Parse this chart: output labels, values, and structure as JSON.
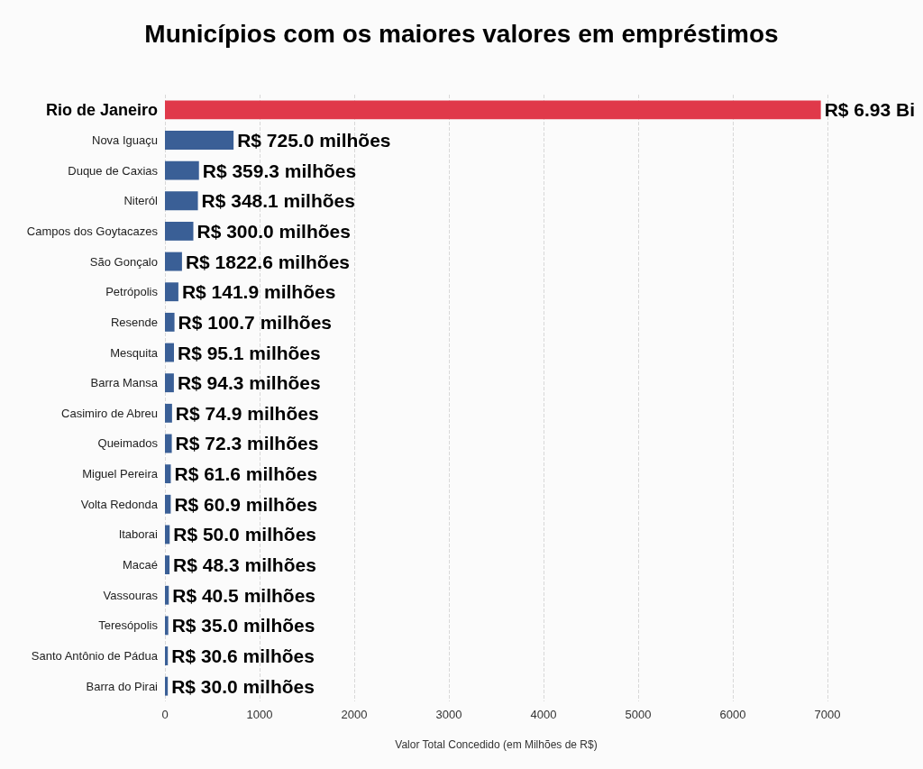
{
  "chart_data": {
    "type": "bar",
    "orientation": "horizontal",
    "title": "Municípios com os maiores valores em empréstimos",
    "xlabel": "Valor Total Concedido (em Milhões de R$)",
    "categories": [
      "Rio de Janeiro",
      "Nova Iguaçu",
      "Duque de Caxias",
      "Niteról",
      "Campos dos Goytacazes",
      "São Gonçalo",
      "Petrópolis",
      "Resende",
      "Mesquita",
      "Barra Mansa",
      "Casimiro de Abreu",
      "Queimados",
      "Miguel Pereira",
      "Volta Redonda",
      "Itaborai",
      "Macaé",
      "Vassouras",
      "Teresópolis",
      "Santo Antônio de Pádua",
      "Barra do Pirai"
    ],
    "values": [
      6930,
      725.0,
      359.3,
      348.1,
      300.0,
      180,
      141.9,
      100.7,
      95.1,
      94.3,
      74.9,
      72.3,
      61.6,
      60.9,
      50.0,
      48.3,
      40.5,
      35.0,
      30.6,
      30.0
    ],
    "value_labels": [
      "R$ 6.93 Bi",
      "R$ 725.0 milhões",
      "R$ 359.3 milhões",
      "R$ 348.1 milhões",
      "R$ 300.0 milhões",
      "R$ 1822.6 milhões",
      "R$ 141.9 milhões",
      "R$ 100.7 milhões",
      "R$ 95.1 milhões",
      "R$ 94.3 milhões",
      "R$ 74.9 milhões",
      "R$ 72.3 milhões",
      "R$ 61.6 milhões",
      "R$ 60.9 milhões",
      "R$ 50.0 milhões",
      "R$ 48.3 milhões",
      "R$ 40.5 milhões",
      "R$ 35.0 milhões",
      "R$ 30.6 milhões",
      "R$ 30.0 milhões"
    ],
    "colors": [
      "#e0394a",
      "#3a5f96",
      "#3a5f96",
      "#3a5f96",
      "#3a5f96",
      "#3a5f96",
      "#3a5f96",
      "#3a5f96",
      "#3a5f96",
      "#3a5f96",
      "#3a5f96",
      "#3a5f96",
      "#3a5f96",
      "#3a5f96",
      "#3a5f96",
      "#3a5f96",
      "#3a5f96",
      "#3a5f96",
      "#3a5f96",
      "#3a5f96"
    ],
    "xlim": [
      0,
      7000
    ],
    "xticks": [
      0,
      1000,
      2000,
      3000,
      4000,
      5000,
      6000,
      7000
    ],
    "grid": "x"
  }
}
